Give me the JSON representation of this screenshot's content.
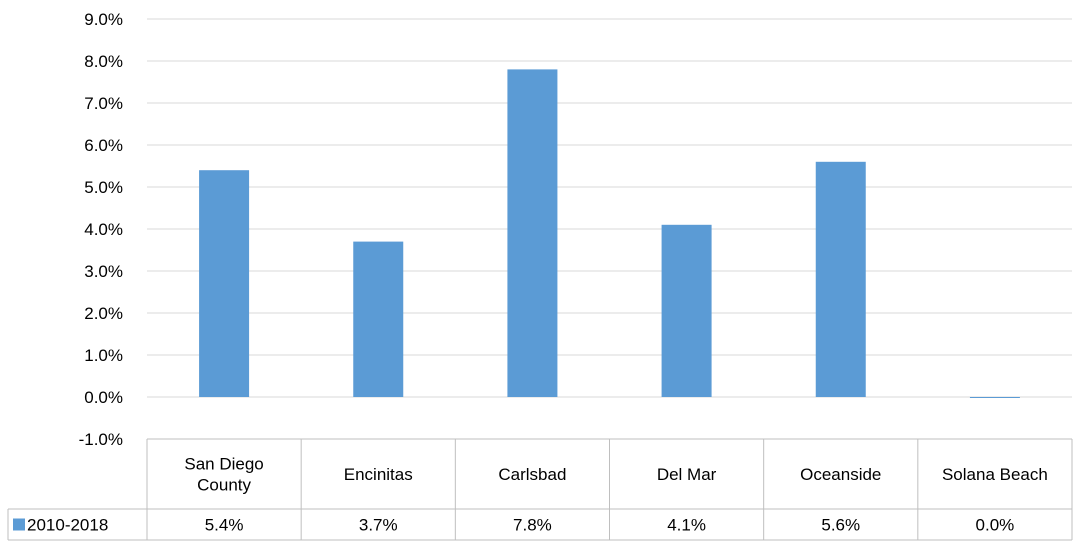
{
  "chart_data": {
    "type": "bar",
    "categories": [
      [
        "San Diego",
        "County"
      ],
      [
        "Encinitas"
      ],
      [
        "Carlsbad"
      ],
      [
        "Del Mar"
      ],
      [
        "Oceanside"
      ],
      [
        "Solana Beach"
      ]
    ],
    "series": [
      {
        "name": "2010-2018",
        "values": [
          5.4,
          3.7,
          7.8,
          4.1,
          5.6,
          0.0
        ],
        "value_labels": [
          "5.4%",
          "3.7%",
          "7.8%",
          "4.1%",
          "5.6%",
          "0.0%"
        ],
        "color": "#5B9BD5"
      }
    ],
    "ylim": [
      -1.0,
      9.0
    ],
    "yticks": [
      "-1.0%",
      "0.0%",
      "1.0%",
      "2.0%",
      "3.0%",
      "4.0%",
      "5.0%",
      "6.0%",
      "7.0%",
      "8.0%",
      "9.0%"
    ],
    "grid": true,
    "data_table": true,
    "colors": {
      "grid": "#D9D9D9",
      "axis": "#BFBFBF",
      "bar": "#5B9BD5"
    }
  }
}
